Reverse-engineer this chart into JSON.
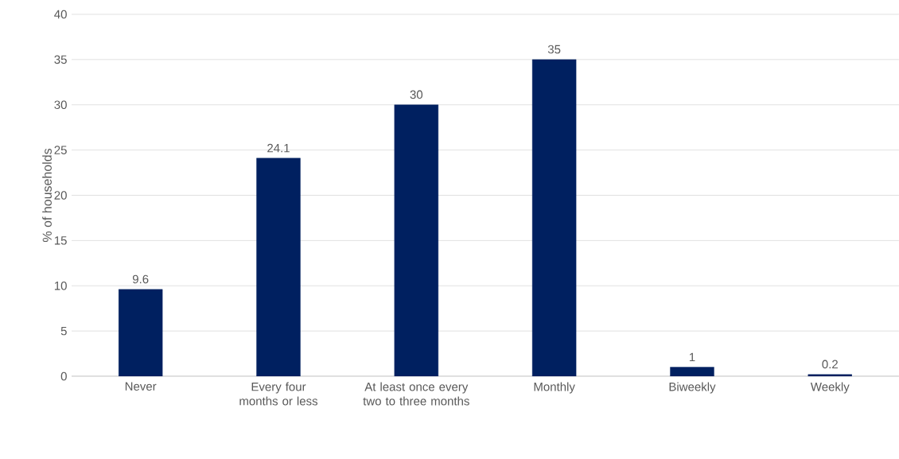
{
  "chart_data": {
    "type": "bar",
    "ylabel": "% of households",
    "categories": [
      "Never",
      "Every four months or less",
      "At least once every two to three months",
      "Monthly",
      "Biweekly",
      "Weekly"
    ],
    "values": [
      9.6,
      24.1,
      30,
      35,
      1,
      0.2
    ],
    "color": "#002060",
    "ylim": [
      0,
      40
    ],
    "yticks": [
      0,
      5,
      10,
      15,
      20,
      25,
      30,
      35,
      40
    ],
    "grid": "y",
    "data_labels": true
  }
}
